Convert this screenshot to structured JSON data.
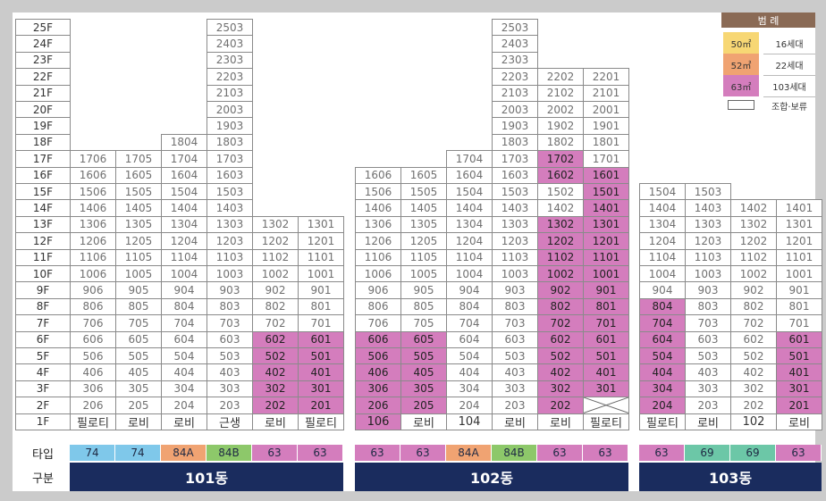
{
  "legend": {
    "title": "범 례",
    "items": [
      {
        "area": "50㎡",
        "count": "16세대",
        "color": "#f7d774"
      },
      {
        "area": "52㎡",
        "count": "22세대",
        "color": "#f0a372"
      },
      {
        "area": "63㎡",
        "count": "103세대",
        "color": "#d47dbd"
      }
    ],
    "union_label": "조합·보류"
  },
  "floors": [
    "1F",
    "2F",
    "3F",
    "4F",
    "5F",
    "6F",
    "7F",
    "8F",
    "9F",
    "10F",
    "11F",
    "12F",
    "13F",
    "14F",
    "15F",
    "16F",
    "17F",
    "18F",
    "19F",
    "20F",
    "21F",
    "22F",
    "23F",
    "24F",
    "25F"
  ],
  "row_labels": {
    "type": "타입",
    "section": "구분"
  },
  "buildings": [
    {
      "name": "101동",
      "columns": [
        {
          "line": "06",
          "top": 17,
          "ground": "필로티",
          "type": "74",
          "type_color": "#7fc8ea",
          "pink": []
        },
        {
          "line": "05",
          "top": 17,
          "ground": "로비",
          "type": "74",
          "type_color": "#7fc8ea",
          "pink": []
        },
        {
          "line": "04",
          "top": 18,
          "ground": "로비",
          "type": "84A",
          "type_color": "#f0a372",
          "pink": []
        },
        {
          "line": "03",
          "top": 25,
          "ground": "근생",
          "type": "84B",
          "type_color": "#8dc86a",
          "pink": []
        },
        {
          "line": "02",
          "top": 13,
          "ground": "로비",
          "type": "63",
          "type_color": "#d47dbd",
          "pink": [
            2,
            3,
            4,
            5,
            6
          ]
        },
        {
          "line": "01",
          "top": 13,
          "ground": "필로티",
          "type": "63",
          "type_color": "#d47dbd",
          "pink": [
            2,
            3,
            4,
            5,
            6
          ]
        }
      ]
    },
    {
      "name": "102동",
      "columns": [
        {
          "line": "06",
          "top": 16,
          "ground": "106",
          "ground_pink": true,
          "type": "63",
          "type_color": "#d47dbd",
          "pink": [
            2,
            3,
            4,
            5,
            6
          ]
        },
        {
          "line": "05",
          "top": 16,
          "ground": "로비",
          "type": "63",
          "type_color": "#d47dbd",
          "pink": [
            2,
            3,
            4,
            5,
            6
          ]
        },
        {
          "line": "04",
          "top": 17,
          "ground": "104",
          "type": "84A",
          "type_color": "#f0a372",
          "pink": []
        },
        {
          "line": "03",
          "top": 25,
          "ground": "로비",
          "type": "84B",
          "type_color": "#8dc86a",
          "pink": []
        },
        {
          "line": "02",
          "top": 22,
          "ground": "로비",
          "type": "63",
          "type_color": "#d47dbd",
          "pink": [
            2,
            3,
            4,
            5,
            6,
            7,
            8,
            9,
            10,
            11,
            12,
            13,
            17,
            16
          ]
        },
        {
          "line": "01",
          "top": 22,
          "ground": "필로티",
          "type": "63",
          "type_color": "#d47dbd",
          "pink": [
            3,
            4,
            5,
            6,
            7,
            8,
            9,
            10,
            11,
            12,
            13,
            14,
            15,
            16
          ],
          "cross_floor": 2
        }
      ]
    },
    {
      "name": "103동",
      "columns": [
        {
          "line": "04",
          "top": 15,
          "ground": "필로티",
          "type": "63",
          "type_color": "#d47dbd",
          "pink": [
            2,
            3,
            4,
            5,
            6,
            7,
            8
          ]
        },
        {
          "line": "03",
          "top": 15,
          "ground": "로비",
          "type": "69",
          "type_color": "#6cc7a7",
          "pink": []
        },
        {
          "line": "02",
          "top": 14,
          "ground": "102",
          "type": "69",
          "type_color": "#6cc7a7",
          "pink": []
        },
        {
          "line": "01",
          "top": 14,
          "ground": "로비",
          "type": "63",
          "type_color": "#d47dbd",
          "pink": [
            2,
            3,
            4,
            5,
            6
          ]
        }
      ]
    }
  ]
}
